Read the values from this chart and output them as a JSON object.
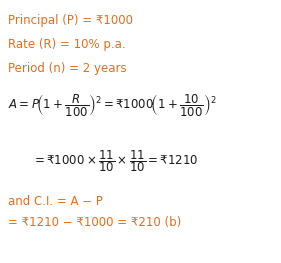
{
  "bg_color": "#ffffff",
  "orange": "#e07020",
  "black": "#1a1a1a",
  "line1": "Principal (P) = ₹1000",
  "line2": "Rate (R) = 10% p.a.",
  "line3": "Period (n) = 2 years",
  "line_ci1": "and C.I. = A − P",
  "line_ci2": "= ₹1210 − ₹1000 = ₹210 (b)",
  "figsize": [
    2.81,
    2.63
  ],
  "dpi": 100,
  "fs_plain": 8.5,
  "fs_math": 8.5
}
